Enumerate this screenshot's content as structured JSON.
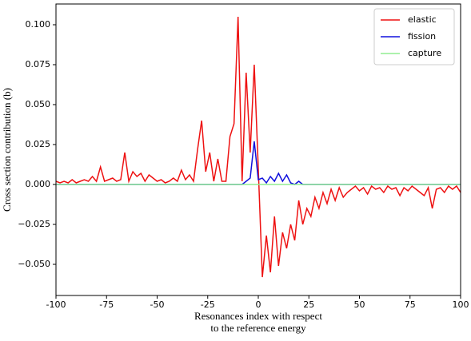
{
  "chart_data": {
    "type": "line",
    "xlabel": [
      "Resonances index with respect",
      "to the reference energy"
    ],
    "ylabel": "Cross section contribution (b)",
    "x": [
      -100,
      -98,
      -96,
      -94,
      -92,
      -90,
      -88,
      -86,
      -84,
      -82,
      -80,
      -78,
      -76,
      -74,
      -72,
      -70,
      -68,
      -66,
      -64,
      -62,
      -60,
      -58,
      -56,
      -54,
      -52,
      -50,
      -48,
      -46,
      -44,
      -42,
      -40,
      -38,
      -36,
      -34,
      -32,
      -30,
      -28,
      -26,
      -24,
      -22,
      -20,
      -18,
      -16,
      -14,
      -12,
      -10,
      -8,
      -6,
      -4,
      -2,
      0,
      2,
      4,
      6,
      8,
      10,
      12,
      14,
      16,
      18,
      20,
      22,
      24,
      26,
      28,
      30,
      32,
      34,
      36,
      38,
      40,
      42,
      44,
      46,
      48,
      50,
      52,
      54,
      56,
      58,
      60,
      62,
      64,
      66,
      68,
      70,
      72,
      74,
      76,
      78,
      80,
      82,
      84,
      86,
      88,
      90,
      92,
      94,
      96,
      98,
      100
    ],
    "series": [
      {
        "name": "elastic",
        "color": "#ee1111",
        "values": [
          0.002,
          0.001,
          0.002,
          0.001,
          0.003,
          0.001,
          0.002,
          0.003,
          0.002,
          0.005,
          0.002,
          0.011,
          0.002,
          0.003,
          0.004,
          0.002,
          0.003,
          0.02,
          0.002,
          0.008,
          0.005,
          0.007,
          0.002,
          0.006,
          0.004,
          0.002,
          0.003,
          0.001,
          0.002,
          0.004,
          0.002,
          0.009,
          0.003,
          0.006,
          0.002,
          0.022,
          0.04,
          0.008,
          0.02,
          0.002,
          0.016,
          0.002,
          0.002,
          0.03,
          0.038,
          0.105,
          0.002,
          0.07,
          0.02,
          0.075,
          0.01,
          -0.058,
          -0.032,
          -0.055,
          -0.02,
          -0.051,
          -0.03,
          -0.04,
          -0.025,
          -0.035,
          -0.01,
          -0.025,
          -0.015,
          -0.02,
          -0.008,
          -0.015,
          -0.005,
          -0.012,
          -0.003,
          -0.01,
          -0.002,
          -0.008,
          -0.005,
          -0.003,
          -0.001,
          -0.004,
          -0.002,
          -0.006,
          -0.001,
          -0.003,
          -0.002,
          -0.005,
          -0.001,
          -0.003,
          -0.002,
          -0.007,
          -0.002,
          -0.004,
          -0.001,
          -0.003,
          -0.005,
          -0.007,
          -0.002,
          -0.015,
          -0.003,
          -0.002,
          -0.005,
          -0.001,
          -0.003,
          -0.001,
          -0.005
        ]
      },
      {
        "name": "fission",
        "color": "#1111dd",
        "values": [
          0,
          0,
          0,
          0,
          0,
          0,
          0,
          0,
          0,
          0,
          0,
          0,
          0,
          0,
          0,
          0,
          0,
          0,
          0,
          0,
          0,
          0,
          0,
          0,
          0,
          0,
          0,
          0,
          0,
          0,
          0,
          0,
          0,
          0,
          0,
          0,
          0,
          0,
          0,
          0,
          0,
          0,
          0,
          0,
          0,
          0,
          0,
          0.002,
          0.004,
          0.027,
          0.003,
          0.004,
          0.001,
          0.005,
          0.002,
          0.007,
          0.002,
          0.006,
          0.001,
          0,
          0.002,
          0,
          0,
          0,
          0,
          0,
          0,
          0,
          0,
          0,
          0,
          0,
          0,
          0,
          0,
          0,
          0,
          0,
          0,
          0,
          0,
          0,
          0,
          0,
          0,
          0,
          0,
          0,
          0,
          0,
          0,
          0,
          0,
          0,
          0,
          0,
          0,
          0,
          0,
          0,
          0
        ]
      },
      {
        "name": "capture",
        "color": "#90ee90",
        "values": [
          0,
          0,
          0,
          0,
          0,
          0,
          0,
          0,
          0,
          0,
          0,
          0,
          0,
          0,
          0,
          0,
          0,
          0,
          0,
          0,
          0,
          0,
          0,
          0,
          0,
          0,
          0,
          0,
          0,
          0,
          0,
          0,
          0,
          0,
          0,
          0,
          0,
          0,
          0,
          0,
          0,
          0,
          0,
          0,
          0,
          0,
          0,
          0,
          0,
          0,
          0,
          0,
          0,
          0,
          0,
          0,
          0,
          0,
          0,
          0,
          0,
          0,
          0,
          0,
          0,
          0,
          0,
          0,
          0,
          0,
          0,
          0,
          0,
          0,
          0,
          0,
          0,
          0,
          0,
          0,
          0,
          0,
          0,
          0,
          0,
          0,
          0,
          0,
          0,
          0,
          0,
          0,
          0,
          0,
          0,
          0,
          0,
          0,
          0,
          0,
          0
        ]
      }
    ],
    "xlim": [
      -100,
      100
    ],
    "xticks": [
      -100,
      -75,
      -50,
      -25,
      0,
      25,
      50,
      75,
      100
    ],
    "ylim": [
      -0.0695,
      0.113
    ],
    "yticks": [
      {
        "value": -0.05,
        "label": "−0.050"
      },
      {
        "value": -0.025,
        "label": "−0.025"
      },
      {
        "value": 0,
        "label": "0.000"
      },
      {
        "value": 0.025,
        "label": "0.025"
      },
      {
        "value": 0.05,
        "label": "0.050"
      },
      {
        "value": 0.075,
        "label": "0.075"
      },
      {
        "value": 0.1,
        "label": "0.100"
      }
    ],
    "legend": "upper right"
  }
}
